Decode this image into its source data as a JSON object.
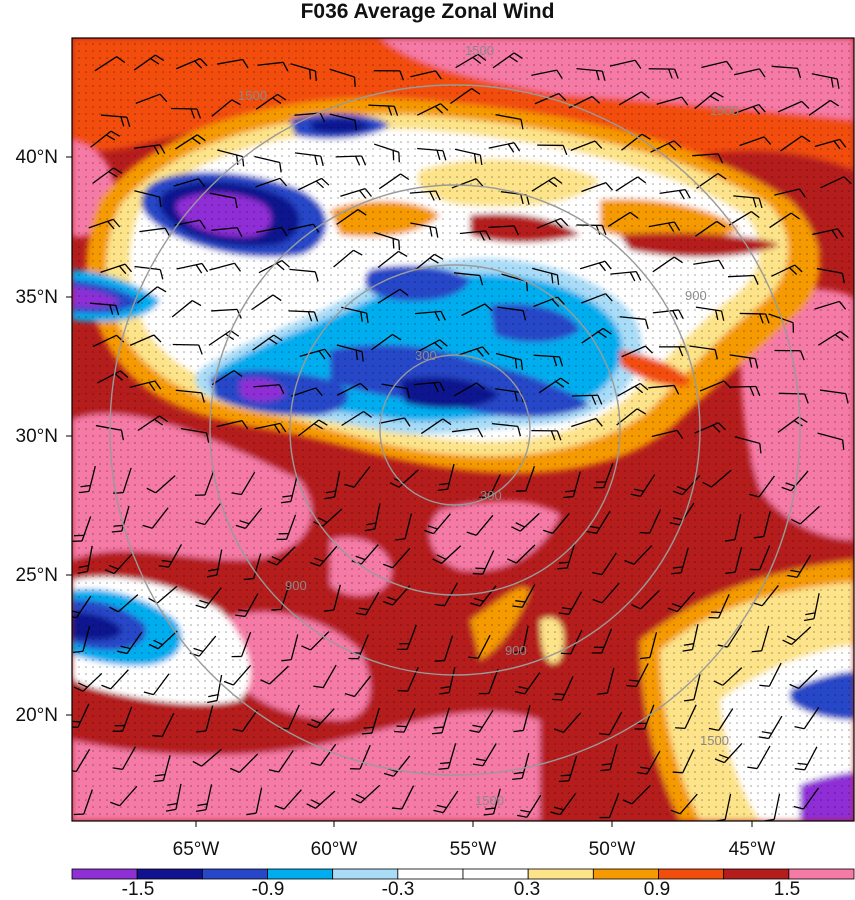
{
  "title": "F036 Average Zonal Wind",
  "map": {
    "lat_labels": [
      "40°N",
      "35°N",
      "30°N",
      "25°N",
      "20°N"
    ],
    "lon_labels": [
      "65°W",
      "60°W",
      "55°W",
      "50°W",
      "45°W"
    ],
    "range_ring_labels": [
      "1500",
      "1500",
      "1500",
      "900",
      "900",
      "900",
      "300",
      "300",
      "1500",
      "1500"
    ]
  },
  "colorbar": {
    "colors": [
      "#8f2fd6",
      "#10128f",
      "#2846c8",
      "#00aef0",
      "#a9dcf7",
      "#ffffff",
      "#ffffff",
      "#fde48a",
      "#f59a00",
      "#f24d0b",
      "#b51d1d",
      "#f57aa6"
    ],
    "labels": [
      "-1.5",
      "-0.9",
      "-0.3",
      "0.3",
      "0.9",
      "1.5"
    ]
  },
  "palette": {
    "pink": "#f57aa6",
    "darkred": "#b51d1d",
    "red": "#f24d0b",
    "orange": "#f59a00",
    "yellow": "#fde48a",
    "white": "#ffffff",
    "lightblue": "#a9dcf7",
    "cyan": "#00aef0",
    "blue": "#2846c8",
    "navy": "#10128f",
    "purple": "#8f2fd6"
  }
}
